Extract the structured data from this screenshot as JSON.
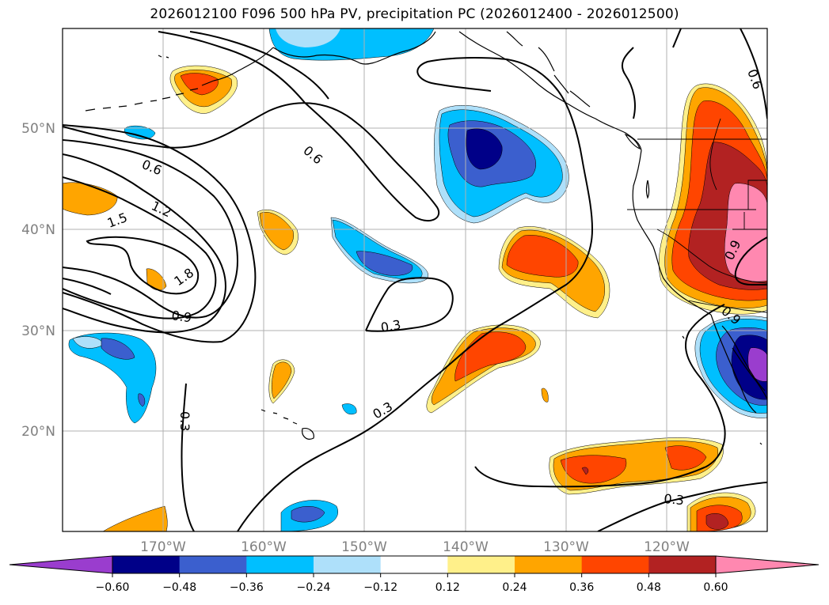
{
  "title": "2026012100 F096 500 hPa PV, precipitation PC (2026012400 - 2026012500)",
  "lat_labels": [
    "50°N",
    "40°N",
    "30°N",
    "20°N"
  ],
  "lon_labels": [
    "170°W",
    "160°W",
    "150°W",
    "140°W",
    "130°W",
    "120°W"
  ],
  "contour_labels": [
    "0.6",
    "0.6",
    "0.6",
    "1.2",
    "1.5",
    "1.8",
    "0.9",
    "0.9",
    "0.9",
    "0.3",
    "0.3",
    "0.3",
    "0.3"
  ],
  "colorbar": {
    "ticks": [
      "−0.60",
      "−0.48",
      "−0.36",
      "−0.24",
      "−0.12",
      "0.12",
      "0.24",
      "0.36",
      "0.48",
      "0.60"
    ],
    "colors": [
      "#9a3dce",
      "#000088",
      "#3b5fce",
      "#00bfff",
      "#aee0fa",
      "#ffffff",
      "#fff08a",
      "#ffa500",
      "#ff4500",
      "#b22222",
      "#ff88b0"
    ]
  },
  "colors": {
    "gridline": "#b0b0b0",
    "coastline": "#000000",
    "pv_contour": "#000000"
  }
}
